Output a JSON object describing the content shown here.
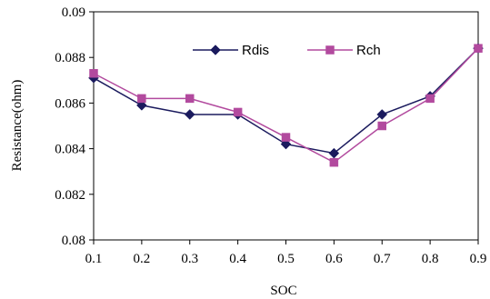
{
  "chart_data": {
    "type": "line",
    "x": [
      0.1,
      0.2,
      0.3,
      0.4,
      0.5,
      0.6,
      0.7,
      0.8,
      0.9
    ],
    "x_tick_labels": [
      "0.1",
      "0.2",
      "0.3",
      "0.4",
      "0.5",
      "0.6",
      "0.7",
      "0.8",
      "0.9"
    ],
    "xlim": [
      0.1,
      0.9
    ],
    "ylim": [
      0.08,
      0.09
    ],
    "y_ticks": [
      0.08,
      0.082,
      0.084,
      0.086,
      0.088,
      0.09
    ],
    "y_tick_labels": [
      "0.08",
      "0.082",
      "0.084",
      "0.086",
      "0.088",
      "0.09"
    ],
    "xlabel": "SOC",
    "ylabel": "Resistance(ohm)",
    "title": "",
    "grid": false,
    "legend_position": "top-center",
    "series": [
      {
        "name": "Rdis",
        "color": "#1b1b5e",
        "marker": "diamond",
        "values": [
          0.0871,
          0.0859,
          0.0855,
          0.0855,
          0.0842,
          0.0838,
          0.0855,
          0.0863,
          0.0884
        ]
      },
      {
        "name": "Rch",
        "color": "#b24a9e",
        "marker": "square",
        "values": [
          0.0873,
          0.0862,
          0.0862,
          0.0856,
          0.0845,
          0.0834,
          0.085,
          0.0862,
          0.0884
        ]
      }
    ]
  }
}
